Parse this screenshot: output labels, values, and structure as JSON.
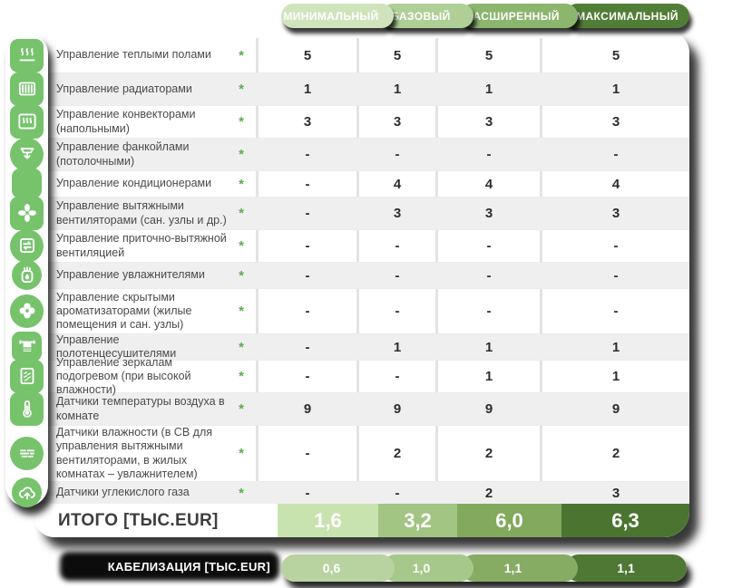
{
  "included_marker": "*",
  "style": {
    "icon_green": "#76c36c",
    "asterisk_green": "#58b144",
    "tab_colors": [
      "#cfe4bc",
      "#aed096",
      "#8cb56e",
      "#517e36"
    ],
    "total_colors": [
      "#c9e3af",
      "#a2c583",
      "#81aa5d",
      "#4c7431"
    ],
    "cabling_colors": [
      "#b8d2a0",
      "#a7c88b",
      "#86ac63",
      "#4e7833"
    ]
  },
  "chart_data": {
    "type": "table",
    "columns": [
      "МИНИМАЛЬНЫЙ",
      "БАЗОВЫЙ",
      "РАСШИРЕННЫЙ",
      "МАКСИМАЛЬНЫЙ"
    ],
    "rows": [
      {
        "icon": "floor-heating-icon",
        "label": "Управление теплыми полами",
        "values": [
          "5",
          "5",
          "5",
          "5"
        ]
      },
      {
        "icon": "radiator-icon",
        "label": "Управление радиаторами",
        "values": [
          "1",
          "1",
          "1",
          "1"
        ]
      },
      {
        "icon": "convector-icon",
        "label": "Управление конвекторами (напольными)",
        "values": [
          "3",
          "3",
          "3",
          "3"
        ]
      },
      {
        "icon": "fancoil-icon",
        "label": "Управление фанкойлами (потолочными)",
        "values": [
          "-",
          "-",
          "-",
          "-"
        ]
      },
      {
        "icon": "air-conditioner-icon",
        "label": "Управление кондиционерами",
        "values": [
          "-",
          "4",
          "4",
          "4"
        ]
      },
      {
        "icon": "exhaust-fan-icon",
        "label": "Управление вытяжными вентиляторами (сан. узлы и др.)",
        "values": [
          "-",
          "3",
          "3",
          "3"
        ]
      },
      {
        "icon": "supply-exhaust-ventilation-icon",
        "label": "Управление приточно-вытяжной вентиляцией",
        "values": [
          "-",
          "-",
          "-",
          "-"
        ]
      },
      {
        "icon": "humidifier-icon",
        "label": "Управление увлажнителями",
        "values": [
          "-",
          "-",
          "-",
          "-"
        ]
      },
      {
        "icon": "aroma-diffuser-icon",
        "label": "Управление скрытыми ароматизаторами (жилые помещения и сан. узлы)",
        "values": [
          "-",
          "-",
          "-",
          "-"
        ]
      },
      {
        "icon": "towel-dryer-icon",
        "label": "Управление полотенцесушителями",
        "values": [
          "-",
          "1",
          "1",
          "1"
        ]
      },
      {
        "icon": "heated-mirror-icon",
        "label": "Управление зеркалам подогревом (при высокой влажности)",
        "values": [
          "-",
          "-",
          "1",
          "1"
        ]
      },
      {
        "icon": "temperature-sensor-icon",
        "label": "Датчики температуры воздуха в комнате",
        "values": [
          "9",
          "9",
          "9",
          "9"
        ]
      },
      {
        "icon": "humidity-sensor-icon",
        "label": "Датчики влажности (в СВ для управления вытяжными вентиляторами, в жилых комнатах – увлажнителем)",
        "values": [
          "-",
          "2",
          "2",
          "2"
        ]
      },
      {
        "icon": "co2-sensor-icon",
        "label": "Датчики углекислого газа",
        "values": [
          "-",
          "-",
          "2",
          "3"
        ]
      }
    ],
    "totals": {
      "label": "ИТОГО [ТЫС.EUR]",
      "values": [
        "1,6",
        "3,2",
        "6,0",
        "6,3"
      ]
    },
    "cabling": {
      "label": "КАБЕЛИЗАЦИЯ [ТЫС.EUR]",
      "values": [
        "0,6",
        "1,0",
        "1,1",
        "1,1"
      ]
    }
  }
}
